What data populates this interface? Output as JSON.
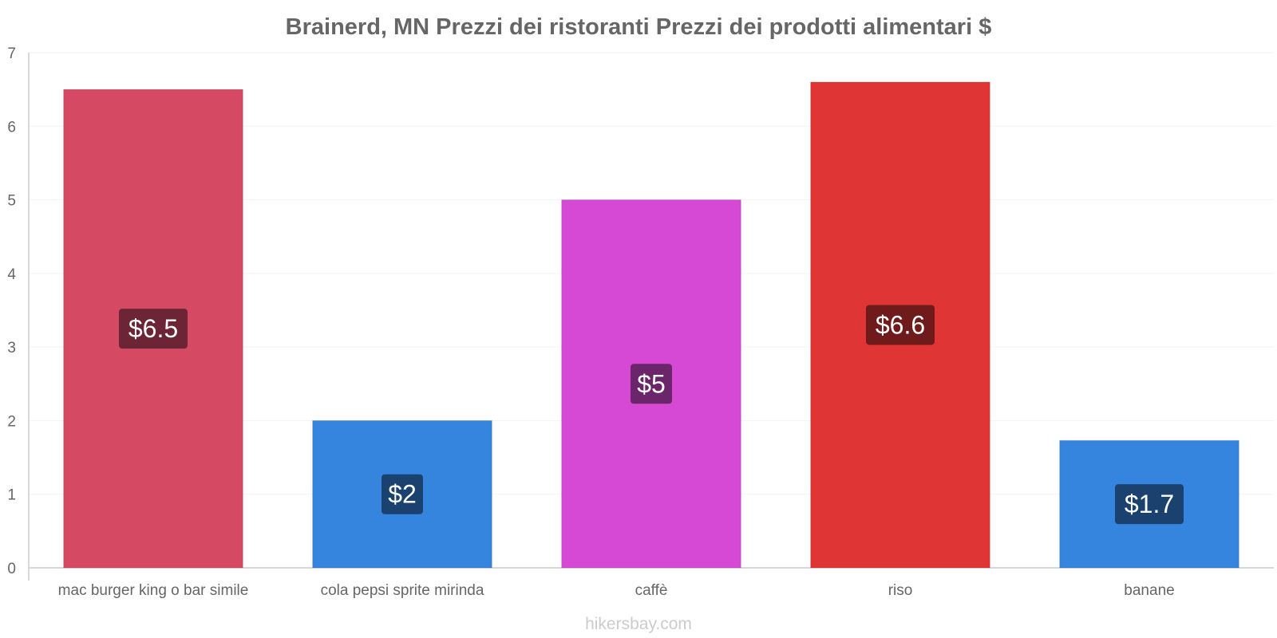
{
  "chart_data": {
    "type": "bar",
    "title": "Brainerd, MN Prezzi dei ristoranti Prezzi dei prodotti alimentari $",
    "categories": [
      "mac burger king o bar simile",
      "cola pepsi sprite mirinda",
      "caffè",
      "riso",
      "banane"
    ],
    "values": [
      6.5,
      2.0,
      5.0,
      6.6,
      1.73
    ],
    "value_labels": [
      "$6.5",
      "$2",
      "$5",
      "$6.6",
      "$1.7"
    ],
    "bar_colors": [
      "#d64963",
      "#3584de",
      "#d649d4",
      "#e03535",
      "#3584de"
    ],
    "label_bg_colors": [
      "#6b2535",
      "#1b426f",
      "#6b256a",
      "#701b1b",
      "#1b426f"
    ],
    "yticks": [
      0,
      1,
      2,
      3,
      4,
      5,
      6,
      7
    ],
    "ytick_labels": [
      "0",
      "1",
      "2",
      "3",
      "4",
      "5",
      "6",
      "7"
    ],
    "ylim": [
      0,
      7
    ],
    "xlabel": "",
    "ylabel": "",
    "grid": true
  },
  "watermark": "hikersbay.com"
}
